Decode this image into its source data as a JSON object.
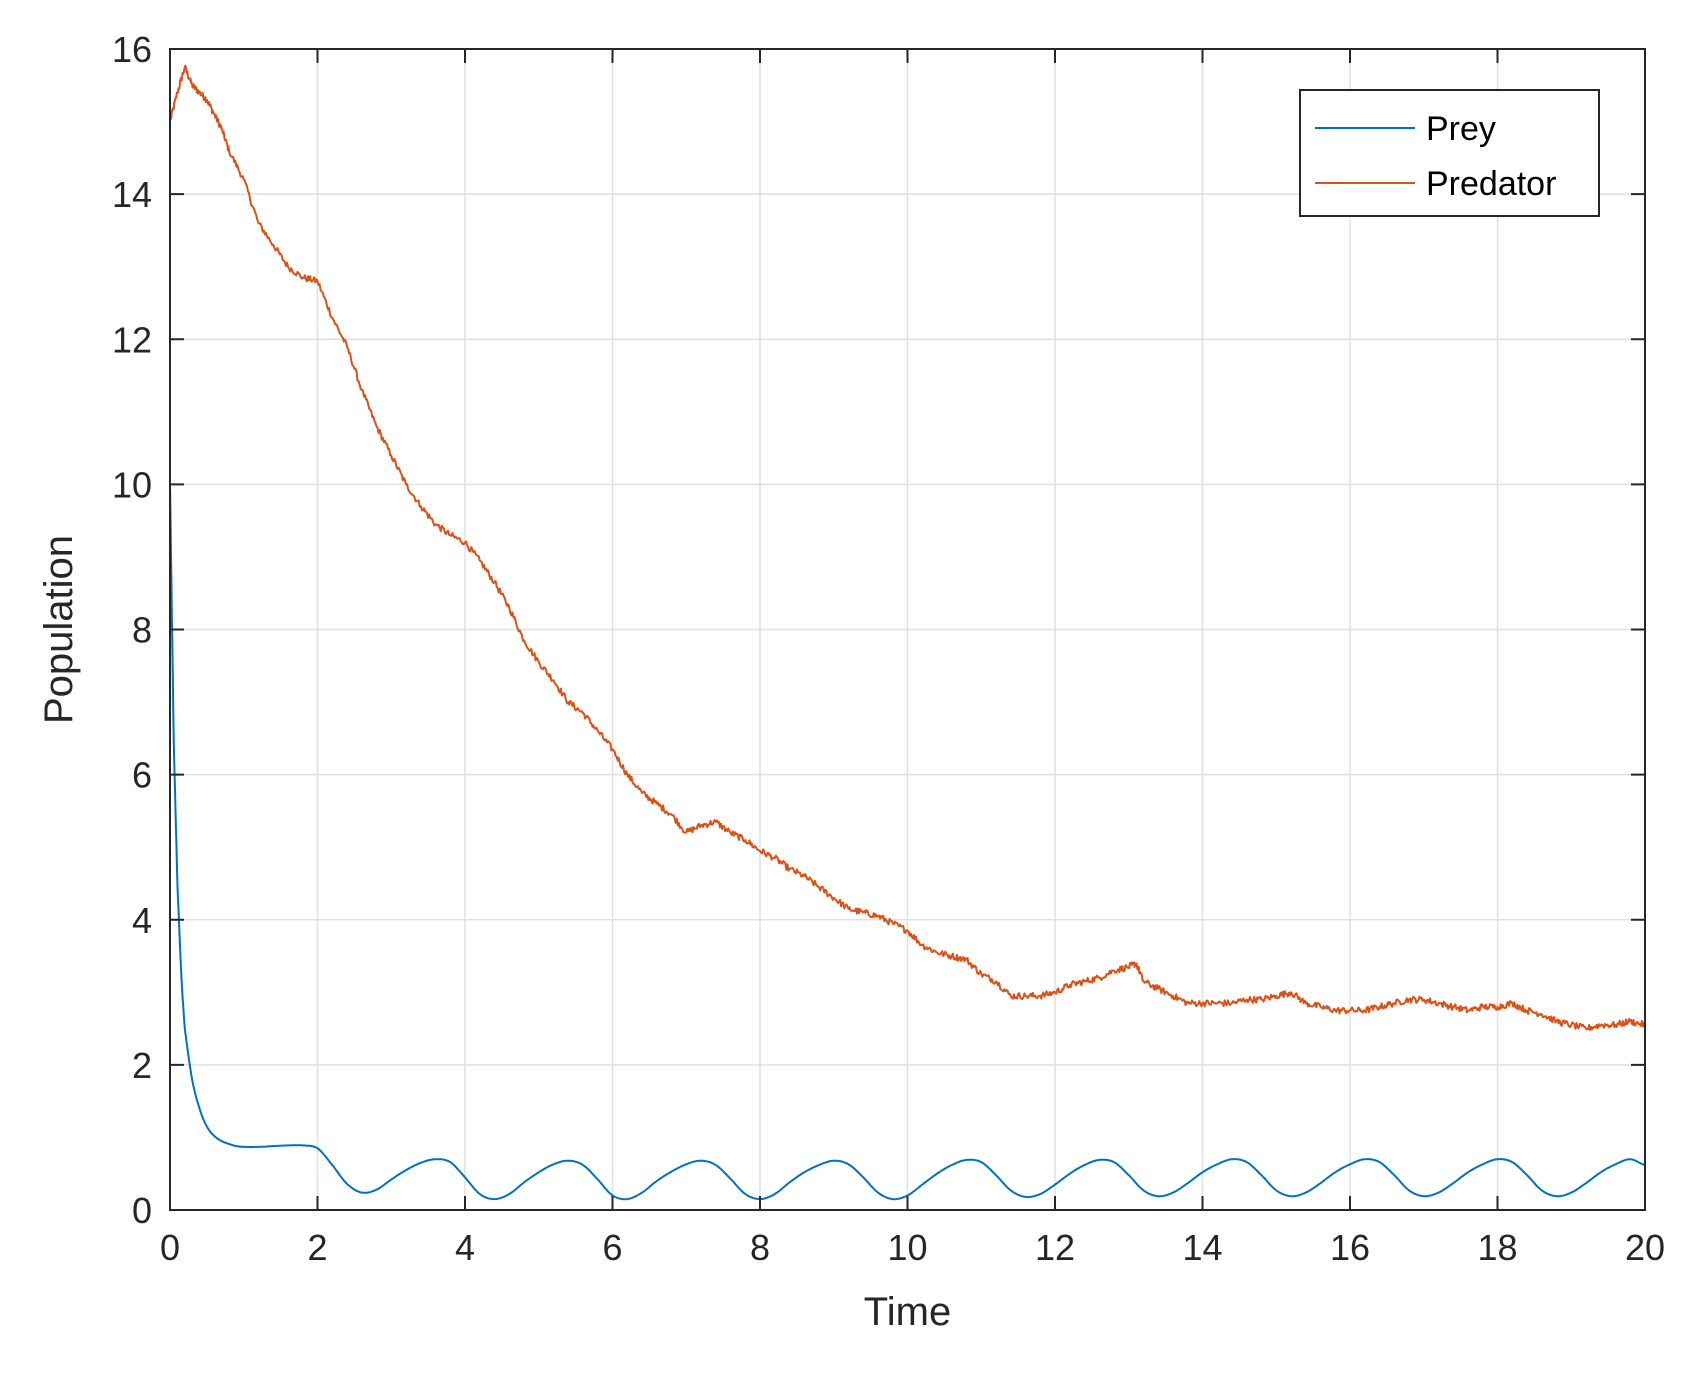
{
  "chart_data": {
    "type": "line",
    "title": "",
    "xlabel": "Time",
    "ylabel": "Population",
    "xlim": [
      0,
      20
    ],
    "ylim": [
      0,
      16
    ],
    "xticks": [
      0,
      2,
      4,
      6,
      8,
      10,
      12,
      14,
      16,
      18,
      20
    ],
    "yticks": [
      0,
      2,
      4,
      6,
      8,
      10,
      12,
      14,
      16
    ],
    "grid": true,
    "legend_position": "top-right",
    "series": [
      {
        "name": "Prey",
        "color": "#0072BD",
        "x": [
          0,
          0.05,
          0.1,
          0.15,
          0.2,
          0.3,
          0.4,
          0.5,
          0.6,
          0.7,
          0.8,
          0.9,
          1.0,
          1.2,
          1.4,
          1.6,
          1.8,
          2.0,
          2.2,
          2.4,
          2.6,
          2.8,
          3.0,
          3.2,
          3.4,
          3.6,
          3.8,
          4.0,
          4.2,
          4.4,
          4.6,
          4.8,
          5.0,
          5.2,
          5.4,
          5.6,
          5.8,
          6.0,
          6.2,
          6.4,
          6.6,
          6.8,
          7.0,
          7.2,
          7.4,
          7.6,
          7.8,
          8.0,
          8.2,
          8.4,
          8.6,
          8.8,
          9.0,
          9.2,
          9.4,
          9.6,
          9.8,
          10.0,
          10.2,
          10.4,
          10.6,
          10.8,
          11.0,
          11.2,
          11.4,
          11.6,
          11.8,
          12.0,
          12.2,
          12.4,
          12.6,
          12.8,
          13.0,
          13.2,
          13.4,
          13.6,
          13.8,
          14.0,
          14.2,
          14.4,
          14.6,
          14.8,
          15.0,
          15.2,
          15.4,
          15.6,
          15.8,
          16.0,
          16.2,
          16.4,
          16.6,
          16.8,
          17.0,
          17.2,
          17.4,
          17.6,
          17.8,
          18.0,
          18.2,
          18.4,
          18.6,
          18.8,
          19.0,
          19.2,
          19.4,
          19.6,
          19.8,
          20.0
        ],
        "values": [
          10.0,
          6.5,
          4.5,
          3.3,
          2.5,
          1.8,
          1.4,
          1.15,
          1.02,
          0.95,
          0.91,
          0.88,
          0.87,
          0.87,
          0.88,
          0.89,
          0.89,
          0.85,
          0.62,
          0.36,
          0.24,
          0.28,
          0.42,
          0.55,
          0.65,
          0.7,
          0.66,
          0.45,
          0.22,
          0.15,
          0.22,
          0.38,
          0.52,
          0.63,
          0.68,
          0.62,
          0.42,
          0.2,
          0.15,
          0.24,
          0.4,
          0.53,
          0.63,
          0.68,
          0.62,
          0.43,
          0.22,
          0.15,
          0.22,
          0.38,
          0.52,
          0.62,
          0.68,
          0.63,
          0.45,
          0.24,
          0.15,
          0.2,
          0.35,
          0.5,
          0.62,
          0.69,
          0.66,
          0.48,
          0.27,
          0.18,
          0.22,
          0.35,
          0.5,
          0.62,
          0.69,
          0.66,
          0.48,
          0.27,
          0.19,
          0.24,
          0.37,
          0.52,
          0.63,
          0.7,
          0.66,
          0.48,
          0.27,
          0.19,
          0.24,
          0.37,
          0.52,
          0.63,
          0.7,
          0.66,
          0.48,
          0.27,
          0.19,
          0.24,
          0.37,
          0.52,
          0.63,
          0.7,
          0.66,
          0.48,
          0.27,
          0.19,
          0.24,
          0.37,
          0.52,
          0.63,
          0.7,
          0.62
        ]
      },
      {
        "name": "Predator",
        "color": "#D95319",
        "x": [
          0,
          0.1,
          0.2,
          0.3,
          0.4,
          0.5,
          0.6,
          0.7,
          0.8,
          1.0,
          1.2,
          1.4,
          1.6,
          1.8,
          2.0,
          2.2,
          2.4,
          2.6,
          2.8,
          3.0,
          3.2,
          3.4,
          3.6,
          3.8,
          4.0,
          4.2,
          4.4,
          4.6,
          4.8,
          5.0,
          5.2,
          5.4,
          5.6,
          5.8,
          6.0,
          6.2,
          6.4,
          6.6,
          6.8,
          7.0,
          7.2,
          7.4,
          7.6,
          7.8,
          8.0,
          8.2,
          8.4,
          8.6,
          8.8,
          9.0,
          9.2,
          9.4,
          9.6,
          9.8,
          10.0,
          10.2,
          10.4,
          10.6,
          10.8,
          11.0,
          11.2,
          11.4,
          11.6,
          11.8,
          12.0,
          12.2,
          12.4,
          12.6,
          12.8,
          13.0,
          13.1,
          13.2,
          13.4,
          13.6,
          13.8,
          14.0,
          14.2,
          14.4,
          14.6,
          14.8,
          15.0,
          15.2,
          15.4,
          15.6,
          15.8,
          16.0,
          16.2,
          16.4,
          16.6,
          16.8,
          17.0,
          17.2,
          17.4,
          17.6,
          17.8,
          18.0,
          18.2,
          18.4,
          18.6,
          18.8,
          19.0,
          19.2,
          19.4,
          19.6,
          19.8,
          20.0
        ],
        "values": [
          15.0,
          15.4,
          15.75,
          15.5,
          15.4,
          15.3,
          15.1,
          14.9,
          14.6,
          14.2,
          13.6,
          13.3,
          13.0,
          12.85,
          12.8,
          12.3,
          11.9,
          11.3,
          10.8,
          10.4,
          10.0,
          9.7,
          9.45,
          9.3,
          9.2,
          8.95,
          8.65,
          8.3,
          7.85,
          7.55,
          7.3,
          7.0,
          6.85,
          6.6,
          6.35,
          6.0,
          5.75,
          5.6,
          5.45,
          5.2,
          5.3,
          5.35,
          5.2,
          5.1,
          4.95,
          4.85,
          4.7,
          4.6,
          4.45,
          4.3,
          4.15,
          4.1,
          4.05,
          3.95,
          3.85,
          3.65,
          3.55,
          3.5,
          3.45,
          3.25,
          3.15,
          2.95,
          2.95,
          2.95,
          3.0,
          3.1,
          3.15,
          3.2,
          3.3,
          3.35,
          3.4,
          3.15,
          3.05,
          2.95,
          2.85,
          2.85,
          2.85,
          2.85,
          2.9,
          2.9,
          2.95,
          3.0,
          2.85,
          2.8,
          2.75,
          2.75,
          2.75,
          2.8,
          2.85,
          2.9,
          2.9,
          2.85,
          2.8,
          2.75,
          2.8,
          2.8,
          2.85,
          2.75,
          2.7,
          2.6,
          2.55,
          2.5,
          2.55,
          2.55,
          2.6,
          2.55
        ]
      }
    ]
  }
}
